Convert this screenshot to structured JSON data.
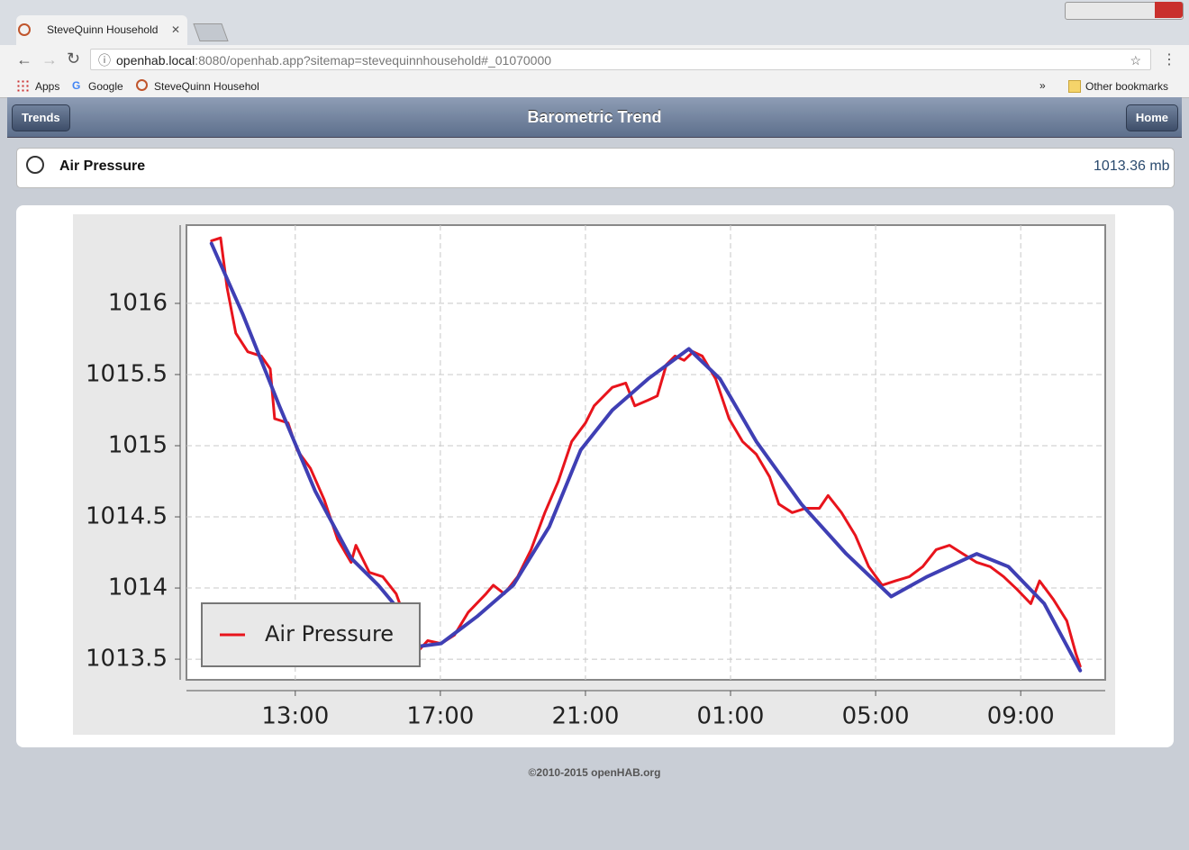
{
  "browser": {
    "tab_title": "SteveQuinn Household",
    "url_host": "openhab.local",
    "url_rest": ":8080/openhab.app?sitemap=stevequinnhousehold#_01070000",
    "bookmarks": [
      "Apps",
      "Google",
      "SteveQuinn Househol"
    ],
    "overflow": "»",
    "other_bookmarks": "Other bookmarks"
  },
  "header": {
    "back": "Trends",
    "title": "Barometric Trend",
    "home": "Home"
  },
  "item": {
    "label": "Air Pressure",
    "value": "1013.36 mb"
  },
  "footer": "©2010-2015 openHAB.org",
  "chart_data": {
    "type": "line",
    "grid": true,
    "legend": "lower left",
    "xlim": [
      10,
      35.33
    ],
    "ylim": [
      1013.355,
      1016.55
    ],
    "xticks": [
      {
        "value": 13,
        "label": "13:00"
      },
      {
        "value": 17,
        "label": "17:00"
      },
      {
        "value": 21,
        "label": "21:00"
      },
      {
        "value": 25,
        "label": "01:00"
      },
      {
        "value": 29,
        "label": "05:00"
      },
      {
        "value": 33,
        "label": "09:00"
      }
    ],
    "yticks": [
      1013.5,
      1014,
      1014.5,
      1015,
      1015.5,
      1016
    ],
    "series": [
      {
        "name": "Air Pressure",
        "color": "#e8141c",
        "x": [
          10.69,
          10.94,
          11.12,
          11.36,
          11.69,
          12.06,
          12.31,
          12.43,
          12.8,
          13.05,
          13.42,
          13.8,
          14.17,
          14.54,
          14.67,
          15.04,
          15.41,
          15.78,
          16.15,
          16.33,
          16.65,
          17.02,
          17.39,
          17.77,
          18.26,
          18.46,
          18.76,
          19.13,
          19.5,
          19.88,
          20.25,
          20.62,
          21,
          21.24,
          21.74,
          22.11,
          22.36,
          22.73,
          22.98,
          23.23,
          23.47,
          23.72,
          23.97,
          24.22,
          24.59,
          24.96,
          25.33,
          25.71,
          26.08,
          26.33,
          26.7,
          27.07,
          27.45,
          27.69,
          28.06,
          28.44,
          28.81,
          29.18,
          29.55,
          29.93,
          30.3,
          30.67,
          31.04,
          31.41,
          31.79,
          32.16,
          32.53,
          32.9,
          33.28,
          33.52,
          33.9,
          34.27,
          34.52,
          34.64
        ],
        "values": [
          1016.44,
          1016.46,
          1016.11,
          1015.79,
          1015.66,
          1015.63,
          1015.54,
          1015.19,
          1015.16,
          1014.97,
          1014.84,
          1014.62,
          1014.34,
          1014.18,
          1014.3,
          1014.11,
          1014.08,
          1013.96,
          1013.7,
          1013.54,
          1013.63,
          1013.61,
          1013.67,
          1013.83,
          1013.96,
          1014.02,
          1013.96,
          1014.08,
          1014.27,
          1014.53,
          1014.75,
          1015.03,
          1015.16,
          1015.28,
          1015.41,
          1015.44,
          1015.28,
          1015.32,
          1015.35,
          1015.57,
          1015.63,
          1015.6,
          1015.66,
          1015.63,
          1015.47,
          1015.19,
          1015.03,
          1014.94,
          1014.78,
          1014.59,
          1014.53,
          1014.56,
          1014.56,
          1014.65,
          1014.53,
          1014.37,
          1014.15,
          1014.02,
          1014.05,
          1014.08,
          1014.15,
          1014.27,
          1014.3,
          1014.24,
          1014.18,
          1014.15,
          1014.08,
          1013.99,
          1013.89,
          1014.05,
          1013.92,
          1013.77,
          1013.54,
          1013.45
        ]
      },
      {
        "color": "#3f3fb4",
        "x": [
          10.69,
          11.56,
          12.56,
          13.55,
          14.54,
          15.29,
          15.91,
          16.4,
          17.02,
          18.01,
          19.01,
          20,
          20.87,
          21.74,
          22.73,
          23.85,
          24.71,
          25.71,
          26.95,
          28.19,
          29.43,
          30.42,
          31.79,
          32.66,
          33.65,
          34.64
        ],
        "values": [
          1016.42,
          1015.92,
          1015.28,
          1014.68,
          1014.21,
          1014.02,
          1013.83,
          1013.59,
          1013.61,
          1013.8,
          1014.02,
          1014.43,
          1014.97,
          1015.25,
          1015.47,
          1015.68,
          1015.47,
          1015.03,
          1014.59,
          1014.24,
          1013.94,
          1014.08,
          1014.24,
          1014.15,
          1013.89,
          1013.42
        ]
      }
    ]
  }
}
